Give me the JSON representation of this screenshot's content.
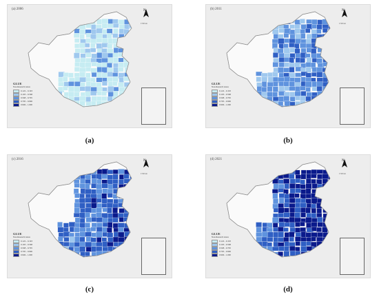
{
  "panels": [
    {
      "id": "a",
      "title": "(a) 2006",
      "caption": "(a)",
      "north": "N",
      "scale": "0    500 km",
      "legend": {
        "title": "GLUE",
        "subtitle": "Non-Research Areas",
        "classes": [
          "0.122 - 0.193",
          "0.193 - 0.568",
          "0.568 - 0.795",
          "0.795 - 0.906",
          "0.906 - 1.000"
        ]
      },
      "level": 0
    },
    {
      "id": "b",
      "title": "(b) 2011",
      "caption": "(b)",
      "north": "N",
      "scale": "0    500 km",
      "legend": {
        "title": "GLUE",
        "subtitle": "Non-Research Areas",
        "classes": [
          "0.122 - 0.193",
          "0.193 - 0.568",
          "0.568 - 0.795",
          "0.795 - 0.906",
          "0.906 - 1.000"
        ]
      },
      "level": 1
    },
    {
      "id": "c",
      "title": "(c) 2016",
      "caption": "(c)",
      "north": "N",
      "scale": "0    500 km",
      "legend": {
        "title": "GLUE",
        "subtitle": "Non-Research Areas",
        "classes": [
          "0.122 - 0.193",
          "0.193 - 0.568",
          "0.568 - 0.795",
          "0.795 - 0.906",
          "0.906 - 1.000"
        ]
      },
      "level": 2
    },
    {
      "id": "d",
      "title": "(d) 2021",
      "caption": "(d)",
      "north": "N",
      "scale": "0    500 km",
      "legend": {
        "title": "GLUE",
        "subtitle": "Non-Research Areas",
        "classes": [
          "0.122 - 0.193",
          "0.193 - 0.568",
          "0.568 - 0.795",
          "0.795 - 0.906",
          "0.906 - 1.000"
        ]
      },
      "level": 3
    }
  ],
  "colors": {
    "non_research": "#fafafa",
    "class_fills": [
      "#c6ecf2",
      "#9fc8ee",
      "#5f93de",
      "#2f5fc4",
      "#0a1a8c"
    ],
    "outline": "#9a9a9a"
  }
}
